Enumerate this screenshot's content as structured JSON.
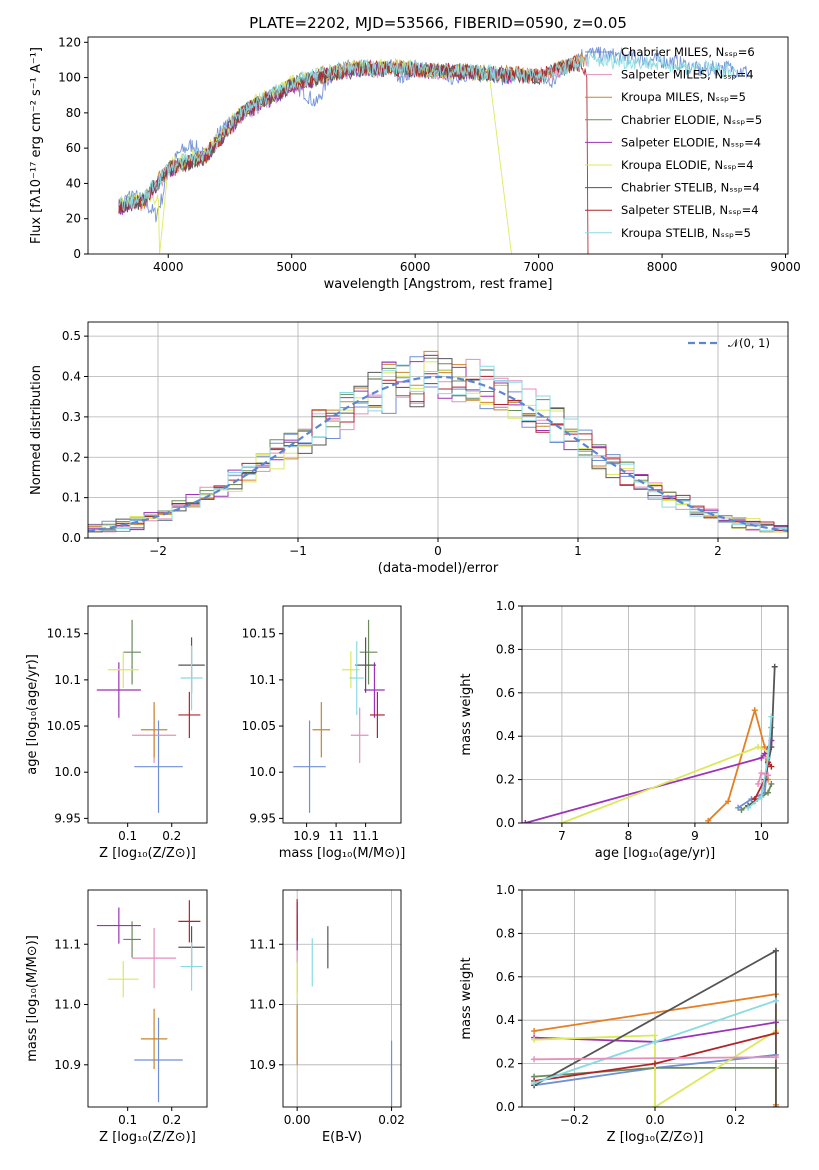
{
  "colors": {
    "Chabrier MILES": "#6f8fd6",
    "Salpeter MILES": "#e58fbd",
    "Kroupa MILES": "#c9862b",
    "Chabrier ELODIE": "#6a8a5c",
    "Salpeter ELODIE": "#9b32b8",
    "Kroupa ELODIE": "#dde85a",
    "Chabrier STELIB": "#555555",
    "Salpeter STELIB": "#b0252b",
    "Kroupa STELIB": "#88dbe3"
  },
  "weightColors": [
    "#6f8fd6",
    "#e67e22",
    "#6a8a5c",
    "#9b32b8",
    "#dde85a",
    "#555555",
    "#b0252b",
    "#88dbe3",
    "#e58fbd"
  ],
  "chart_data": [
    {
      "type": "line",
      "title": "PLATE=2202, MJD=53566, FIBERID=0590, z=0.05",
      "xlabel": "wavelength [Angstrom, rest frame]",
      "ylabel": "Flux [fλ10⁻¹⁷ erg cm⁻² s⁻¹ A⁻¹]",
      "xlim": [
        3350,
        9020
      ],
      "ylim": [
        0,
        123
      ],
      "xticks": [
        4000,
        5000,
        6000,
        7000,
        8000,
        9000
      ],
      "yticks": [
        0,
        20,
        40,
        60,
        80,
        100,
        120
      ],
      "legend_position": "right",
      "legend": [
        "Chabrier MILES, Nₛₛₚ=6",
        "Salpeter MILES, Nₛₛₚ=4",
        "Kroupa MILES, Nₛₛₚ=5",
        "Chabrier ELODIE, Nₛₛₚ=5",
        "Salpeter ELODIE, Nₛₛₚ=4",
        "Kroupa ELODIE, Nₛₛₚ=4",
        "Chabrier STELIB, Nₛₛₚ=4",
        "Salpeter STELIB, Nₛₛₚ=4",
        "Kroupa STELIB, Nₛₛₚ=5"
      ],
      "series": [
        {
          "name": "Chabrier MILES",
          "x": [
            3600,
            3700,
            3800,
            3900,
            3950,
            4000,
            4100,
            4200,
            4300,
            4400,
            4500,
            4600,
            4700,
            4800,
            4900,
            5000,
            5100,
            5200,
            5300,
            5400,
            5500,
            5600,
            5700,
            5800,
            5900,
            6000,
            6100,
            6200,
            6300,
            6400,
            6500,
            6600,
            6700,
            6800,
            6900,
            7000,
            7100,
            7200,
            7300,
            7400,
            7500,
            7700,
            7900,
            8100,
            8300,
            8500,
            8700
          ],
          "y": [
            27,
            34,
            30,
            22,
            32,
            48,
            58,
            62,
            55,
            68,
            74,
            80,
            84,
            88,
            90,
            96,
            92,
            85,
            100,
            104,
            107,
            105,
            104,
            106,
            100,
            106,
            103,
            104,
            100,
            102,
            101,
            103,
            100,
            102,
            99,
            101,
            96,
            104,
            112,
            114,
            113,
            112,
            110,
            109,
            104,
            106,
            103
          ]
        },
        {
          "name": "Salpeter MILES",
          "x": [
            3600,
            3800,
            4000,
            4300,
            4600,
            5000,
            5400,
            5800,
            6200,
            6600,
            7000,
            7300,
            7400
          ],
          "y": [
            26,
            29,
            47,
            56,
            79,
            95,
            103,
            105,
            103,
            102,
            100,
            108,
            110
          ]
        },
        {
          "name": "Kroupa MILES",
          "x": [
            3600,
            3800,
            4000,
            4300,
            4600,
            5000,
            5400,
            5800,
            6200,
            6600,
            7000,
            7300,
            7400
          ],
          "y": [
            28,
            30,
            49,
            54,
            81,
            97,
            105,
            106,
            104,
            103,
            101,
            109,
            111
          ]
        },
        {
          "name": "Chabrier ELODIE",
          "x": [
            3600,
            3800,
            4000,
            4300,
            4600,
            5000,
            5400,
            5800,
            6200,
            6600,
            6790
          ],
          "y": [
            27,
            31,
            48,
            56,
            80,
            96,
            104,
            105,
            104,
            102,
            101
          ]
        },
        {
          "name": "Salpeter ELODIE",
          "x": [
            3600,
            3800,
            4000,
            4300,
            4600,
            5000,
            5400,
            5800,
            6200,
            6600,
            6790
          ],
          "y": [
            26,
            30,
            47,
            55,
            79,
            95,
            104,
            106,
            103,
            103,
            100
          ]
        },
        {
          "name": "Kroupa ELODIE",
          "x": [
            3600,
            3800,
            3920,
            3930,
            4000,
            4300,
            4600,
            5000,
            5400,
            5800,
            6200,
            6600,
            6780
          ],
          "y": [
            29,
            32,
            30,
            0,
            50,
            57,
            82,
            97,
            105,
            107,
            104,
            102,
            0
          ]
        },
        {
          "name": "Chabrier STELIB",
          "x": [
            3600,
            3800,
            4000,
            4300,
            4600,
            5000,
            5400,
            5800,
            6200,
            6600,
            7000,
            7300
          ],
          "y": [
            27,
            30,
            48,
            55,
            80,
            96,
            103,
            105,
            104,
            102,
            100,
            108
          ]
        },
        {
          "name": "Salpeter STELIB",
          "x": [
            3600,
            3800,
            4000,
            4300,
            4600,
            5000,
            5400,
            5800,
            6200,
            6600,
            7000,
            7300,
            7390,
            7400
          ],
          "y": [
            27,
            31,
            48,
            56,
            80,
            96,
            104,
            105,
            104,
            103,
            101,
            109,
            100,
            0
          ]
        },
        {
          "name": "Kroupa STELIB",
          "x": [
            3600,
            3800,
            4000,
            4300,
            4600,
            5000,
            5400,
            5800,
            6200,
            6600,
            7000,
            7400,
            7800,
            8200,
            8600
          ],
          "y": [
            28,
            31,
            49,
            57,
            81,
            97,
            105,
            106,
            104,
            103,
            101,
            110,
            109,
            106,
            104
          ]
        }
      ]
    },
    {
      "type": "line",
      "subtype": "step-histogram",
      "xlabel": "(data-model)/error",
      "ylabel": "Normed distribution",
      "xlim": [
        -2.5,
        2.5
      ],
      "ylim": [
        0,
        0.535
      ],
      "xticks": [
        -2,
        -1,
        0,
        1,
        2
      ],
      "yticks": [
        0.0,
        0.1,
        0.2,
        0.3,
        0.4,
        0.5
      ],
      "grid": true,
      "legend_position": "top-right",
      "reference_curve": {
        "name": "𝒩(0, 1)",
        "mean": 0,
        "std": 1,
        "style": "dashed"
      },
      "bin_width": 0.1,
      "note_series": "one step histogram per model fit; colors match panel 1"
    },
    {
      "type": "scatter",
      "subtype": "errorbar",
      "xlabel": "Z [log₁₀(Z/Z⊙)]",
      "ylabel": "age  [log₁₀(age/yr)]",
      "xlim": [
        0.01,
        0.28
      ],
      "ylim": [
        9.945,
        10.18
      ],
      "xticks": [
        0.1,
        0.2
      ],
      "yticks": [
        9.95,
        10.0,
        10.05,
        10.1,
        10.15
      ],
      "points": [
        {
          "name": "Chabrier MILES",
          "x": 0.17,
          "y": 10.006,
          "xerr": 0.055,
          "yerr": 0.05
        },
        {
          "name": "Salpeter MILES",
          "x": 0.16,
          "y": 10.04,
          "xerr": 0.05,
          "yerr": 0.03
        },
        {
          "name": "Kroupa MILES",
          "x": 0.16,
          "y": 10.046,
          "xerr": 0.03,
          "yerr": 0.03
        },
        {
          "name": "Chabrier ELODIE",
          "x": 0.11,
          "y": 10.13,
          "xerr": 0.02,
          "yerr": 0.035
        },
        {
          "name": "Salpeter ELODIE",
          "x": 0.08,
          "y": 10.089,
          "xerr": 0.05,
          "yerr": 0.03
        },
        {
          "name": "Kroupa ELODIE",
          "x": 0.09,
          "y": 10.111,
          "xerr": 0.035,
          "yerr": 0.02
        },
        {
          "name": "Chabrier STELIB",
          "x": 0.245,
          "y": 10.116,
          "xerr": 0.03,
          "yerr": 0.03
        },
        {
          "name": "Salpeter STELIB",
          "x": 0.24,
          "y": 10.062,
          "xerr": 0.025,
          "yerr": 0.025
        },
        {
          "name": "Kroupa STELIB",
          "x": 0.245,
          "y": 10.102,
          "xerr": 0.025,
          "yerr": 0.035
        }
      ]
    },
    {
      "type": "scatter",
      "subtype": "errorbar",
      "xlabel": "mass [log₁₀(M/M⊙)]",
      "xlim": [
        10.82,
        11.22
      ],
      "ylim": [
        9.945,
        10.18
      ],
      "xticks": [
        10.9,
        11.0,
        11.1
      ],
      "yticks": [
        9.95,
        10.0,
        10.05,
        10.1,
        10.15
      ],
      "points": [
        {
          "name": "Chabrier MILES",
          "x": 10.91,
          "y": 10.006,
          "xerr": 0.055,
          "yerr": 0.05
        },
        {
          "name": "Salpeter MILES",
          "x": 11.08,
          "y": 10.04,
          "xerr": 0.03,
          "yerr": 0.03
        },
        {
          "name": "Kroupa MILES",
          "x": 10.95,
          "y": 10.046,
          "xerr": 0.03,
          "yerr": 0.03
        },
        {
          "name": "Chabrier ELODIE",
          "x": 11.11,
          "y": 10.13,
          "xerr": 0.03,
          "yerr": 0.035
        },
        {
          "name": "Salpeter ELODIE",
          "x": 11.13,
          "y": 10.089,
          "xerr": 0.035,
          "yerr": 0.03
        },
        {
          "name": "Kroupa ELODIE",
          "x": 11.05,
          "y": 10.111,
          "xerr": 0.03,
          "yerr": 0.02
        },
        {
          "name": "Chabrier STELIB",
          "x": 11.1,
          "y": 10.116,
          "xerr": 0.035,
          "yerr": 0.03
        },
        {
          "name": "Salpeter STELIB",
          "x": 11.14,
          "y": 10.062,
          "xerr": 0.025,
          "yerr": 0.025
        },
        {
          "name": "Kroupa STELIB",
          "x": 11.07,
          "y": 10.102,
          "xerr": 0.025,
          "yerr": 0.04
        }
      ]
    },
    {
      "type": "line",
      "subtype": "cumulative-weights",
      "xlabel": "age  [log₁₀(age/yr)]",
      "ylabel": "mass weight",
      "xlim": [
        6.4,
        10.4
      ],
      "ylim": [
        0,
        1.0
      ],
      "xticks": [
        7,
        8,
        9,
        10
      ],
      "yticks": [
        0.0,
        0.2,
        0.4,
        0.6,
        0.8,
        1.0
      ],
      "grid": true,
      "series": [
        {
          "x": [
            9.65,
            9.85,
            10.05,
            10.15
          ],
          "y": [
            0.07,
            0.11,
            0.14,
            0.44
          ]
        },
        {
          "x": [
            9.2,
            9.5,
            9.9,
            10.05,
            10.1
          ],
          "y": [
            0.01,
            0.1,
            0.52,
            0.35,
            0.2
          ]
        },
        {
          "x": [
            9.7,
            9.9,
            10.1,
            10.15
          ],
          "y": [
            0.06,
            0.1,
            0.14,
            0.18
          ]
        },
        {
          "x": [
            6.45,
            10.0,
            10.05,
            10.15
          ],
          "y": [
            0.0,
            0.3,
            0.32,
            0.38
          ]
        },
        {
          "x": [
            7.0,
            9.95,
            10.1
          ],
          "y": [
            0.0,
            0.35,
            0.33
          ]
        },
        {
          "x": [
            9.8,
            10.0,
            10.15,
            10.2
          ],
          "y": [
            0.08,
            0.12,
            0.35,
            0.72
          ]
        },
        {
          "x": [
            9.9,
            10.05,
            10.1,
            10.15
          ],
          "y": [
            0.11,
            0.2,
            0.28,
            0.26
          ]
        },
        {
          "x": [
            9.8,
            10.0,
            10.1,
            10.15
          ],
          "y": [
            0.07,
            0.12,
            0.3,
            0.49
          ]
        },
        {
          "x": [
            9.95,
            10.0,
            10.1
          ],
          "y": [
            0.18,
            0.23,
            0.22
          ]
        }
      ]
    },
    {
      "type": "scatter",
      "subtype": "errorbar",
      "xlabel": "Z [log₁₀(Z/Z⊙)]",
      "ylabel": "mass [log₁₀(M/M⊙)]",
      "xlim": [
        0.01,
        0.28
      ],
      "ylim": [
        10.83,
        11.19
      ],
      "xticks": [
        0.1,
        0.2
      ],
      "yticks": [
        10.9,
        11.0,
        11.1
      ],
      "points": [
        {
          "name": "Chabrier MILES",
          "x": 0.17,
          "y": 10.908,
          "xerr": 0.055,
          "yerr": 0.07
        },
        {
          "name": "Salpeter MILES",
          "x": 0.16,
          "y": 11.077,
          "xerr": 0.05,
          "yerr": 0.05
        },
        {
          "name": "Kroupa MILES",
          "x": 0.16,
          "y": 10.943,
          "xerr": 0.03,
          "yerr": 0.05
        },
        {
          "name": "Chabrier ELODIE",
          "x": 0.11,
          "y": 11.108,
          "xerr": 0.02,
          "yerr": 0.03
        },
        {
          "name": "Salpeter ELODIE",
          "x": 0.08,
          "y": 11.131,
          "xerr": 0.05,
          "yerr": 0.03
        },
        {
          "name": "Kroupa ELODIE",
          "x": 0.09,
          "y": 11.042,
          "xerr": 0.035,
          "yerr": 0.03
        },
        {
          "name": "Chabrier STELIB",
          "x": 0.245,
          "y": 11.095,
          "xerr": 0.03,
          "yerr": 0.035
        },
        {
          "name": "Salpeter STELIB",
          "x": 0.24,
          "y": 11.138,
          "xerr": 0.025,
          "yerr": 0.035
        },
        {
          "name": "Kroupa STELIB",
          "x": 0.245,
          "y": 11.063,
          "xerr": 0.025,
          "yerr": 0.04
        }
      ]
    },
    {
      "type": "scatter",
      "subtype": "errorbar",
      "xlabel": "E(B-V)",
      "xlim": [
        -0.003,
        0.022
      ],
      "ylim": [
        10.83,
        11.19
      ],
      "xticks": [
        0.0,
        0.02
      ],
      "yticks": [
        10.9,
        11.0,
        11.1
      ],
      "grid": true,
      "points": [
        {
          "name": "Chabrier MILES",
          "x": 0.02,
          "y": 10.88,
          "xerr": 0.0,
          "yerr": 0.06
        },
        {
          "name": "Salpeter MILES",
          "x": 0.0,
          "y": 11.06,
          "xerr": 0.0,
          "yerr": 0.04
        },
        {
          "name": "Kroupa MILES",
          "x": 0.0,
          "y": 10.95,
          "xerr": 0.0,
          "yerr": 0.05
        },
        {
          "name": "Chabrier ELODIE",
          "x": 0.0,
          "y": 11.12,
          "xerr": 0.0,
          "yerr": 0.03
        },
        {
          "name": "Salpeter ELODIE",
          "x": 0.0,
          "y": 11.13,
          "xerr": 0.0,
          "yerr": 0.04
        },
        {
          "name": "Kroupa ELODIE",
          "x": 0.0,
          "y": 11.04,
          "xerr": 0.0,
          "yerr": 0.03
        },
        {
          "name": "Chabrier STELIB",
          "x": 0.0065,
          "y": 11.095,
          "xerr": 0.0,
          "yerr": 0.035
        },
        {
          "name": "Salpeter STELIB",
          "x": 0.0,
          "y": 11.14,
          "xerr": 0.0,
          "yerr": 0.035
        },
        {
          "name": "Kroupa STELIB",
          "x": 0.0032,
          "y": 11.07,
          "xerr": 0.0,
          "yerr": 0.04
        }
      ]
    },
    {
      "type": "line",
      "subtype": "cumulative-weights",
      "xlabel": "Z [log₁₀(Z/Z⊙)]",
      "ylabel": "mass weight",
      "xlim": [
        -0.33,
        0.33
      ],
      "ylim": [
        0,
        1.0
      ],
      "xticks": [
        -0.2,
        0.0,
        0.2
      ],
      "yticks": [
        0.0,
        0.2,
        0.4,
        0.6,
        0.8,
        1.0
      ],
      "grid": true,
      "series": [
        {
          "x": [
            -0.3,
            0.0,
            0.3
          ],
          "y": [
            0.1,
            0.18,
            0.24
          ]
        },
        {
          "x": [
            -0.3,
            0.3,
            0.3
          ],
          "y": [
            0.35,
            0.52,
            0.01
          ]
        },
        {
          "x": [
            -0.3,
            0.0,
            0.3
          ],
          "y": [
            0.14,
            0.18,
            0.18
          ]
        },
        {
          "x": [
            -0.3,
            0.0,
            0.3
          ],
          "y": [
            0.32,
            0.3,
            0.39
          ]
        },
        {
          "x": [
            -0.3,
            0.0,
            0.0,
            0.3
          ],
          "y": [
            0.31,
            0.33,
            0.0,
            0.35
          ]
        },
        {
          "x": [
            -0.3,
            0.3,
            0.3
          ],
          "y": [
            0.1,
            0.72,
            0.0
          ]
        },
        {
          "x": [
            -0.3,
            0.0,
            0.3
          ],
          "y": [
            0.12,
            0.2,
            0.34
          ]
        },
        {
          "x": [
            -0.3,
            0.0,
            0.3
          ],
          "y": [
            0.11,
            0.3,
            0.49
          ]
        },
        {
          "x": [
            -0.3,
            0.3
          ],
          "y": [
            0.22,
            0.23
          ]
        }
      ]
    }
  ]
}
